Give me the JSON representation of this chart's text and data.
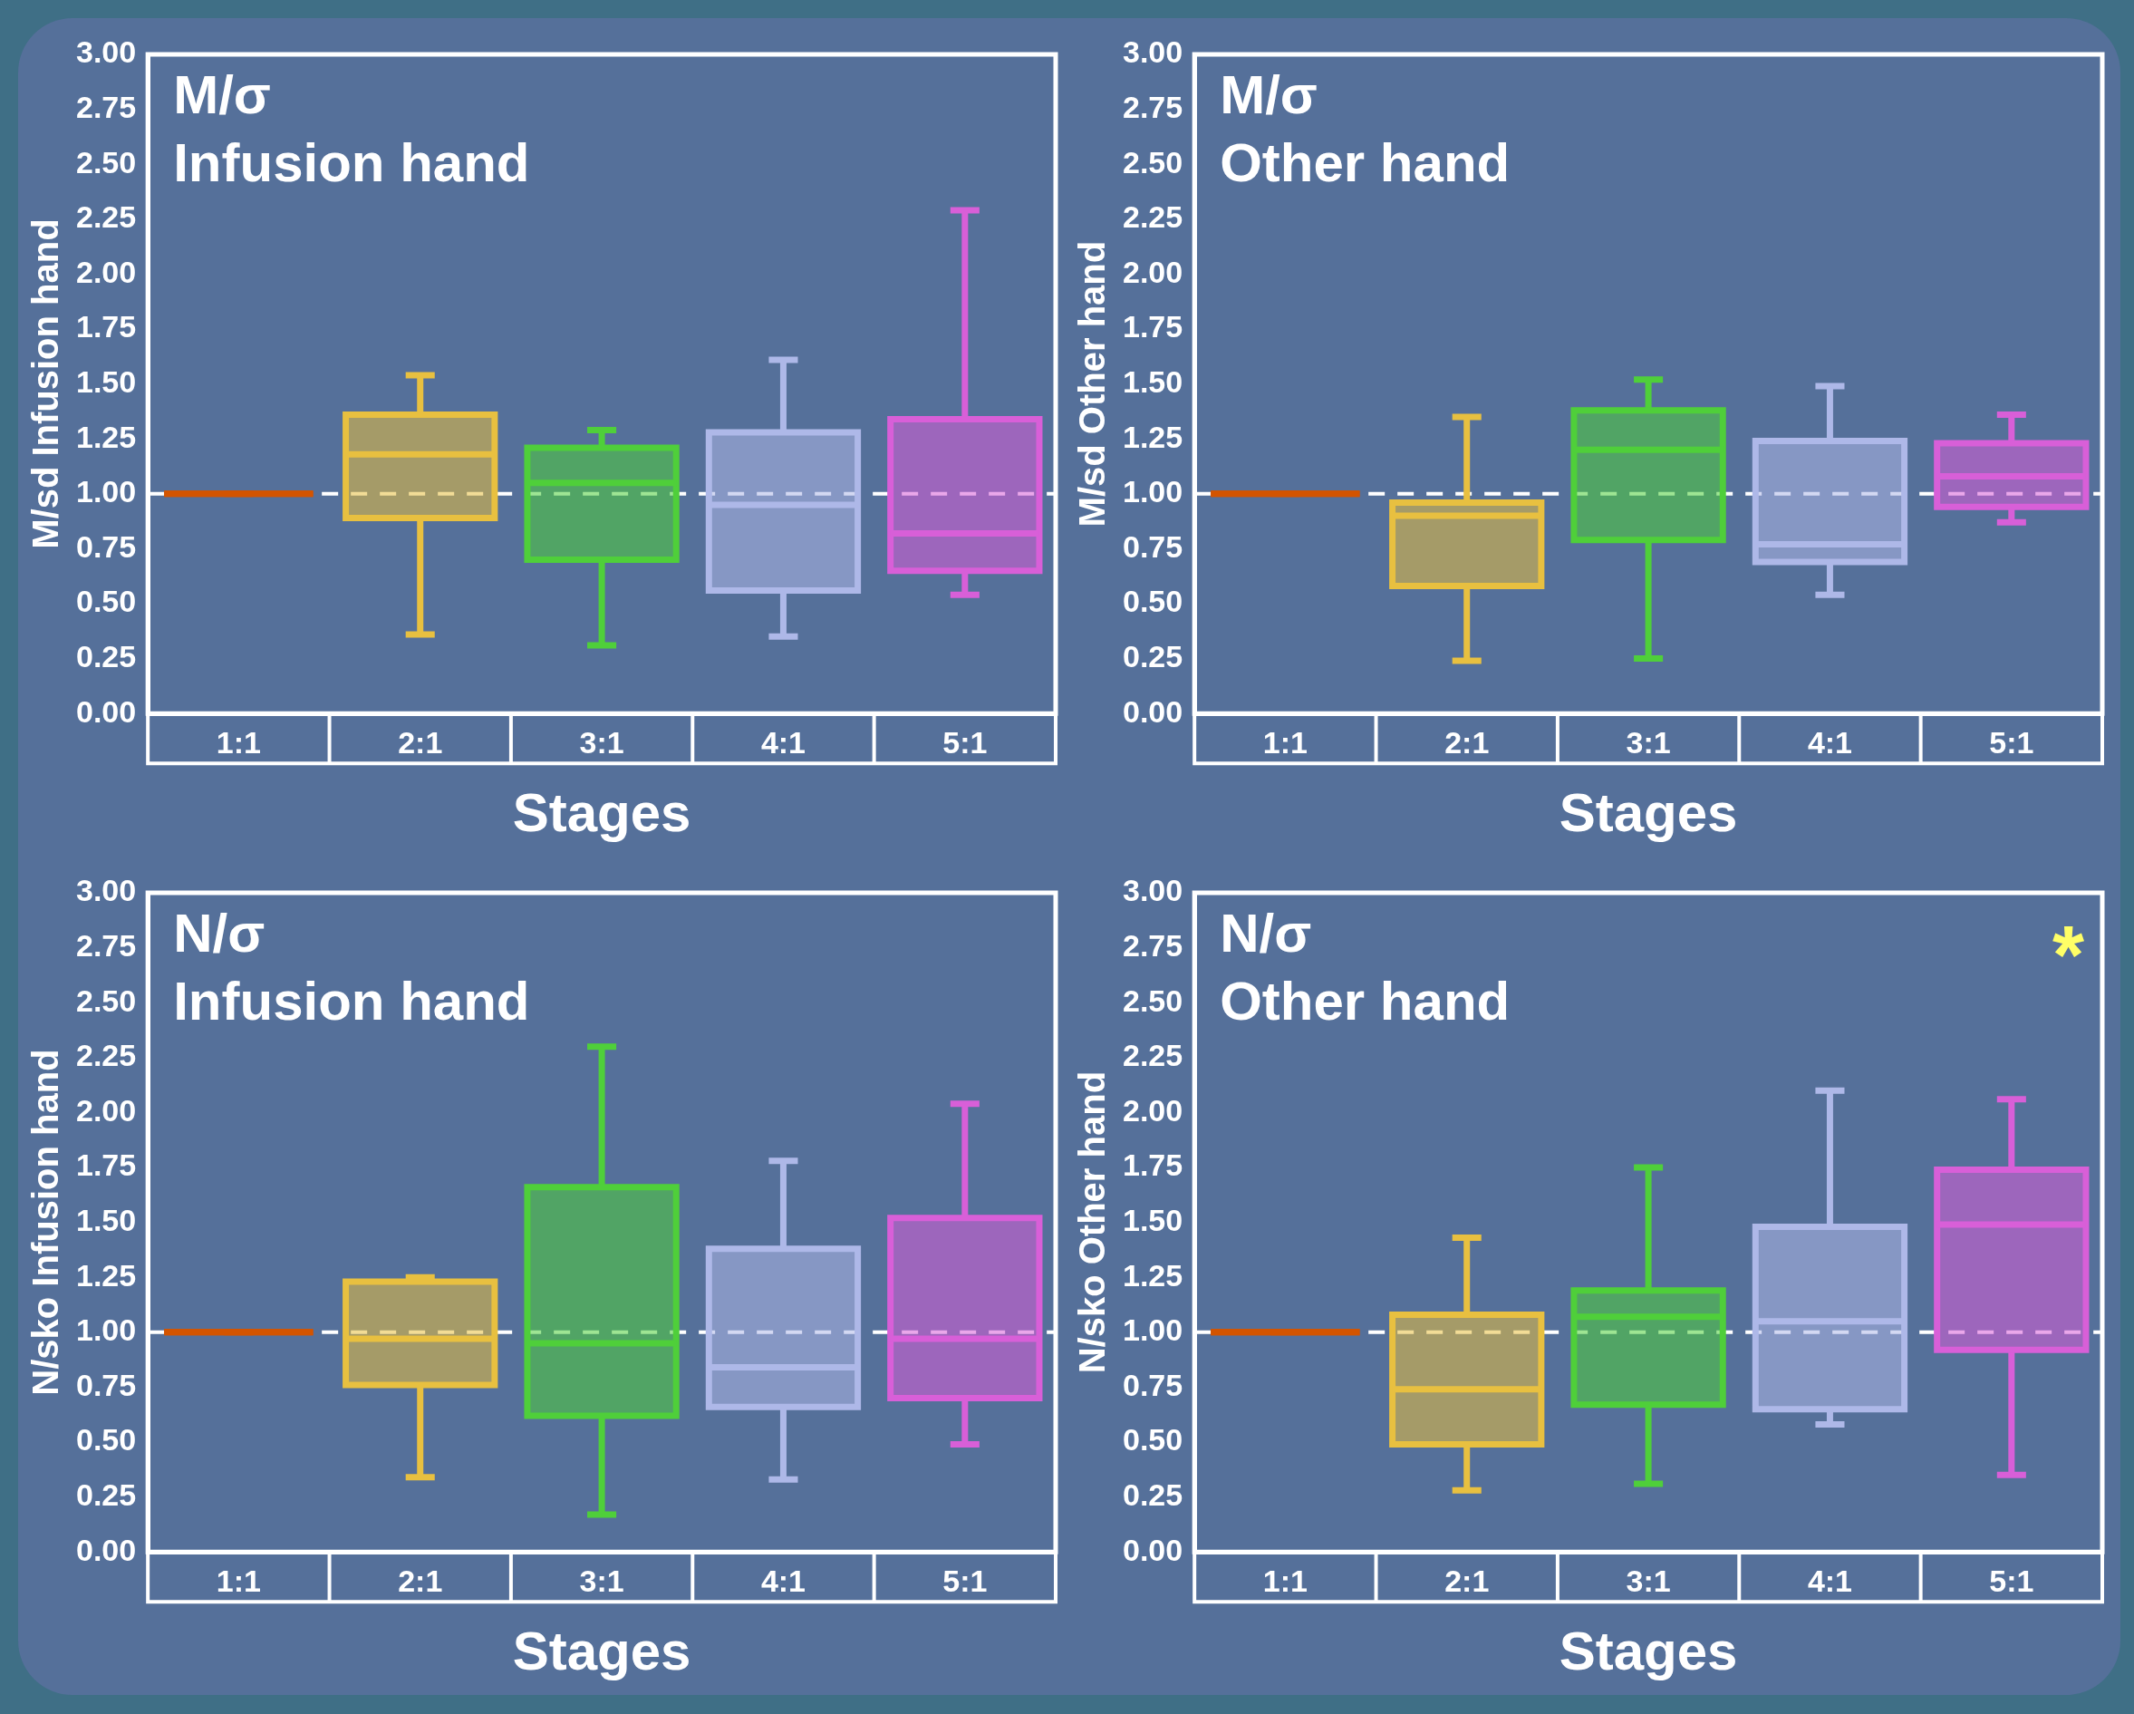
{
  "chart_data": [
    {
      "type": "box",
      "title": "M/σ\nInfusion hand",
      "xlabel": "Stages",
      "ylabel": "M/sd Infusion hand",
      "categories": [
        "1:1",
        "2:1",
        "3:1",
        "4:1",
        "5:1"
      ],
      "colors": [
        "#d35400",
        "#e8c040",
        "#4fcf3a",
        "#aeb8e8",
        "#d85fd8"
      ],
      "boxes": [
        {
          "low": 1,
          "q1": 1,
          "median": 1,
          "q3": 1,
          "high": 1
        },
        {
          "low": 0.36,
          "q1": 0.89,
          "median": 1.18,
          "q3": 1.36,
          "high": 1.54
        },
        {
          "low": 0.31,
          "q1": 0.7,
          "median": 1.05,
          "q3": 1.21,
          "high": 1.29
        },
        {
          "low": 0.35,
          "q1": 0.56,
          "median": 0.95,
          "q3": 1.28,
          "high": 1.61
        },
        {
          "low": 0.54,
          "q1": 0.65,
          "median": 0.82,
          "q3": 1.34,
          "high": 2.29
        }
      ],
      "ylim": [
        0,
        3
      ],
      "yticks": [
        {
          "value": 0,
          "label": "0.00"
        },
        {
          "value": 0.25,
          "label": "0.25"
        },
        {
          "value": 0.5,
          "label": "0.50"
        },
        {
          "value": 0.75,
          "label": "0.75"
        },
        {
          "value": 1,
          "label": "1.00"
        },
        {
          "value": 1.25,
          "label": "1.25"
        },
        {
          "value": 1.5,
          "label": "1.50"
        },
        {
          "value": 1.75,
          "label": "1.75"
        },
        {
          "value": 2,
          "label": "2.00"
        },
        {
          "value": 2.25,
          "label": "2.25"
        },
        {
          "value": 2.5,
          "label": "2.50"
        },
        {
          "value": 2.75,
          "label": "2.75"
        },
        {
          "value": 3,
          "label": "3.00"
        }
      ],
      "ref_lines": [
        {
          "axis": "y",
          "value": 1,
          "color": "#ffffff",
          "line_style": "dashed"
        }
      ],
      "grid": false,
      "legend": false
    },
    {
      "type": "box",
      "title": "M/σ\nOther hand",
      "xlabel": "Stages",
      "ylabel": "M/sd Other hand",
      "categories": [
        "1:1",
        "2:1",
        "3:1",
        "4:1",
        "5:1"
      ],
      "colors": [
        "#d35400",
        "#e8c040",
        "#4fcf3a",
        "#aeb8e8",
        "#d85fd8"
      ],
      "boxes": [
        {
          "low": 1,
          "q1": 1,
          "median": 1,
          "q3": 1,
          "high": 1
        },
        {
          "low": 0.24,
          "q1": 0.58,
          "median": 0.9,
          "q3": 0.96,
          "high": 1.35
        },
        {
          "low": 0.25,
          "q1": 0.79,
          "median": 1.2,
          "q3": 1.38,
          "high": 1.52
        },
        {
          "low": 0.54,
          "q1": 0.69,
          "median": 0.77,
          "q3": 1.24,
          "high": 1.49
        },
        {
          "low": 0.87,
          "q1": 0.94,
          "median": 1.08,
          "q3": 1.23,
          "high": 1.36
        }
      ],
      "ylim": [
        0,
        3
      ],
      "yticks": [
        {
          "value": 0,
          "label": "0.00"
        },
        {
          "value": 0.25,
          "label": "0.25"
        },
        {
          "value": 0.5,
          "label": "0.50"
        },
        {
          "value": 0.75,
          "label": "0.75"
        },
        {
          "value": 1,
          "label": "1.00"
        },
        {
          "value": 1.25,
          "label": "1.25"
        },
        {
          "value": 1.5,
          "label": "1.50"
        },
        {
          "value": 1.75,
          "label": "1.75"
        },
        {
          "value": 2,
          "label": "2.00"
        },
        {
          "value": 2.25,
          "label": "2.25"
        },
        {
          "value": 2.5,
          "label": "2.50"
        },
        {
          "value": 2.75,
          "label": "2.75"
        },
        {
          "value": 3,
          "label": "3.00"
        }
      ],
      "ref_lines": [
        {
          "axis": "y",
          "value": 1,
          "color": "#ffffff",
          "line_style": "dashed"
        }
      ],
      "grid": false,
      "legend": false
    },
    {
      "type": "box",
      "title": "N/σ\nInfusion hand",
      "xlabel": "Stages",
      "ylabel": "N/sko Infusion hand",
      "categories": [
        "1:1",
        "2:1",
        "3:1",
        "4:1",
        "5:1"
      ],
      "colors": [
        "#d35400",
        "#e8c040",
        "#4fcf3a",
        "#aeb8e8",
        "#d85fd8"
      ],
      "boxes": [
        {
          "low": 1,
          "q1": 1,
          "median": 1,
          "q3": 1,
          "high": 1
        },
        {
          "low": 0.34,
          "q1": 0.76,
          "median": 0.97,
          "q3": 1.23,
          "high": 1.25
        },
        {
          "low": 0.17,
          "q1": 0.62,
          "median": 0.95,
          "q3": 1.66,
          "high": 2.3
        },
        {
          "low": 0.33,
          "q1": 0.66,
          "median": 0.84,
          "q3": 1.38,
          "high": 1.78
        },
        {
          "low": 0.49,
          "q1": 0.7,
          "median": 0.97,
          "q3": 1.52,
          "high": 2.04
        }
      ],
      "ylim": [
        0,
        3
      ],
      "yticks": [
        {
          "value": 0,
          "label": "0.00"
        },
        {
          "value": 0.25,
          "label": "0.25"
        },
        {
          "value": 0.5,
          "label": "0.50"
        },
        {
          "value": 0.75,
          "label": "0.75"
        },
        {
          "value": 1,
          "label": "1.00"
        },
        {
          "value": 1.25,
          "label": "1.25"
        },
        {
          "value": 1.5,
          "label": "1.50"
        },
        {
          "value": 1.75,
          "label": "1.75"
        },
        {
          "value": 2,
          "label": "2.00"
        },
        {
          "value": 2.25,
          "label": "2.25"
        },
        {
          "value": 2.5,
          "label": "2.50"
        },
        {
          "value": 2.75,
          "label": "2.75"
        },
        {
          "value": 3,
          "label": "3.00"
        }
      ],
      "ref_lines": [
        {
          "axis": "y",
          "value": 1,
          "color": "#ffffff",
          "line_style": "dashed"
        }
      ],
      "grid": false,
      "legend": false
    },
    {
      "type": "box",
      "title": "N/σ\nOther hand",
      "xlabel": "Stages",
      "ylabel": "N/sko Other hand",
      "categories": [
        "1:1",
        "2:1",
        "3:1",
        "4:1",
        "5:1"
      ],
      "colors": [
        "#d35400",
        "#e8c040",
        "#4fcf3a",
        "#aeb8e8",
        "#d85fd8"
      ],
      "boxes": [
        {
          "low": 1,
          "q1": 1,
          "median": 1,
          "q3": 1,
          "high": 1
        },
        {
          "low": 0.28,
          "q1": 0.49,
          "median": 0.74,
          "q3": 1.08,
          "high": 1.43
        },
        {
          "low": 0.31,
          "q1": 0.67,
          "median": 1.07,
          "q3": 1.19,
          "high": 1.75
        },
        {
          "low": 0.58,
          "q1": 0.65,
          "median": 1.05,
          "q3": 1.48,
          "high": 2.1
        },
        {
          "low": 0.35,
          "q1": 0.92,
          "median": 1.49,
          "q3": 1.74,
          "high": 2.06
        }
      ],
      "ylim": [
        0,
        3
      ],
      "yticks": [
        {
          "value": 0,
          "label": "0.00"
        },
        {
          "value": 0.25,
          "label": "0.25"
        },
        {
          "value": 0.5,
          "label": "0.50"
        },
        {
          "value": 0.75,
          "label": "0.75"
        },
        {
          "value": 1,
          "label": "1.00"
        },
        {
          "value": 1.25,
          "label": "1.25"
        },
        {
          "value": 1.5,
          "label": "1.50"
        },
        {
          "value": 1.75,
          "label": "1.75"
        },
        {
          "value": 2,
          "label": "2.00"
        },
        {
          "value": 2.25,
          "label": "2.25"
        },
        {
          "value": 2.5,
          "label": "2.50"
        },
        {
          "value": 2.75,
          "label": "2.75"
        },
        {
          "value": 3,
          "label": "3.00"
        }
      ],
      "ref_lines": [
        {
          "axis": "y",
          "value": 1,
          "color": "#ffffff",
          "line_style": "dashed"
        }
      ],
      "annotations": [
        "*"
      ],
      "grid": false,
      "legend": false
    }
  ]
}
